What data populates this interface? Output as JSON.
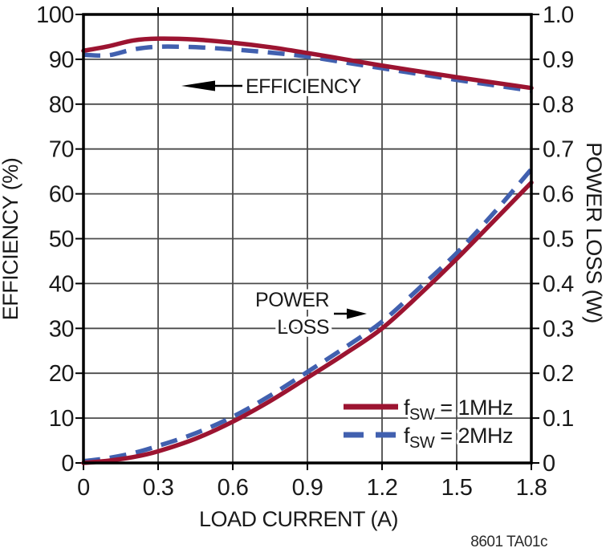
{
  "footnote": "8601 TA01c",
  "colors": {
    "red": "#9C1431",
    "blue": "#4160AF",
    "grid": "#4B4B4B",
    "frame": "#000000",
    "text": "#1A1A1A",
    "background": "#FFFFFF"
  },
  "chart_data": {
    "type": "line",
    "grid": true,
    "x_axis": {
      "label": "LOAD CURRENT (A)",
      "min": 0,
      "max": 1.8,
      "ticks": [
        0,
        0.3,
        0.6,
        0.9,
        1.2,
        1.5,
        1.8
      ],
      "tick_labels": [
        "0",
        "0.3",
        "0.6",
        "0.9",
        "1.2",
        "1.5",
        "1.8"
      ]
    },
    "y_left": {
      "label": "EFFICIENCY (%)",
      "min": 0,
      "max": 100,
      "ticks": [
        0,
        10,
        20,
        30,
        40,
        50,
        60,
        70,
        80,
        90,
        100
      ],
      "tick_labels": [
        "0",
        "10",
        "20",
        "30",
        "40",
        "50",
        "60",
        "70",
        "80",
        "90",
        "100"
      ]
    },
    "y_right": {
      "label": "POWER LOSS (W)",
      "min": 0,
      "max": 1,
      "ticks": [
        0,
        0.1,
        0.2,
        0.3,
        0.4,
        0.5,
        0.6,
        0.7,
        0.8,
        0.9,
        1.0
      ],
      "tick_labels": [
        "0",
        "0.1",
        "0.2",
        "0.3",
        "0.4",
        "0.5",
        "0.6",
        "0.7",
        "0.8",
        "0.9",
        "1.0"
      ]
    },
    "x": [
      0,
      0.1,
      0.2,
      0.3,
      0.45,
      0.6,
      0.75,
      0.9,
      1.05,
      1.2,
      1.35,
      1.5,
      1.65,
      1.8
    ],
    "series": [
      {
        "name": "efficiency-fsw-2mhz",
        "quantity": "Efficiency (%)",
        "fsw": "2MHz",
        "axis": "left",
        "color_key": "blue",
        "style": "dashed",
        "values": [
          91.0,
          90.9,
          92.2,
          92.8,
          92.7,
          92.2,
          91.5,
          90.6,
          89.3,
          88.0,
          86.7,
          85.4,
          84.2,
          83.0
        ]
      },
      {
        "name": "efficiency-fsw-1mhz",
        "quantity": "Efficiency (%)",
        "fsw": "1MHz",
        "axis": "left",
        "color_key": "red",
        "style": "solid",
        "values": [
          91.9,
          92.9,
          94.2,
          94.6,
          94.4,
          93.7,
          92.7,
          91.4,
          90.0,
          88.6,
          87.3,
          86.0,
          84.8,
          83.6
        ]
      },
      {
        "name": "power-loss-fsw-2mhz",
        "quantity": "Power Loss (W)",
        "fsw": "2MHz",
        "axis": "right",
        "color_key": "blue",
        "style": "dashed",
        "values": [
          0.004,
          0.011,
          0.022,
          0.038,
          0.066,
          0.103,
          0.15,
          0.203,
          0.257,
          0.315,
          0.39,
          0.468,
          0.558,
          0.655
        ]
      },
      {
        "name": "power-loss-fsw-1mhz",
        "quantity": "Power Loss (W)",
        "fsw": "1MHz",
        "axis": "right",
        "color_key": "red",
        "style": "solid",
        "values": [
          0,
          0.005,
          0.013,
          0.026,
          0.054,
          0.092,
          0.138,
          0.19,
          0.243,
          0.3,
          0.375,
          0.455,
          0.54,
          0.625
        ]
      }
    ],
    "annotations": [
      {
        "label": "EFFICIENCY",
        "lines": [
          "EFFICIENCY"
        ],
        "arrow": "left"
      },
      {
        "label": "POWER LOSS",
        "lines": [
          "POWER",
          "LOSS"
        ],
        "arrow": "right"
      }
    ],
    "legend": {
      "position": "bottom-right",
      "entries": [
        {
          "pre": "f",
          "sub": "SW",
          "rest": " = 1MHz",
          "color_key": "red",
          "style": "solid"
        },
        {
          "pre": "f",
          "sub": "SW",
          "rest": " = 2MHz",
          "color_key": "blue",
          "style": "dashed"
        }
      ]
    }
  }
}
